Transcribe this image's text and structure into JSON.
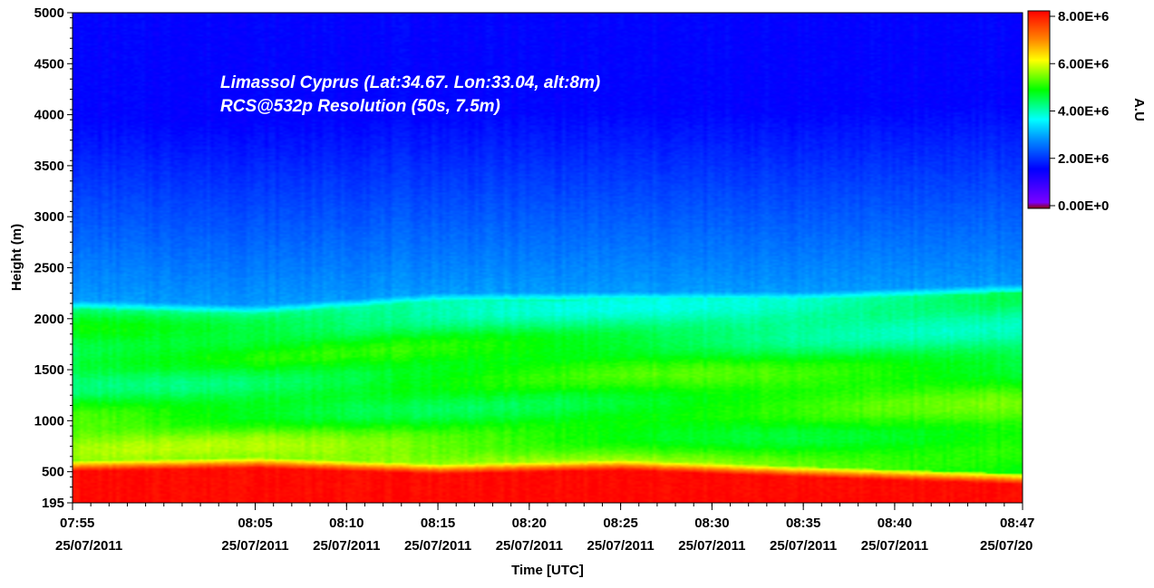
{
  "chart_data": {
    "type": "heatmap",
    "title": "",
    "annotations": [
      "Limassol Cyprus (Lat:34.67. Lon:33.04, alt:8m)",
      "RCS@532p Resolution (50s, 7.5m)"
    ],
    "xlabel": "Time [UTC]",
    "ylabel": "Height (m)",
    "x_range": [
      "07:55",
      "08:47"
    ],
    "x_ticks": [
      {
        "time": "07:55",
        "date": "25/07/2011",
        "minutes": 0
      },
      {
        "time": "08:05",
        "date": "25/07/2011",
        "minutes": 10
      },
      {
        "time": "08:10",
        "date": "25/07/2011",
        "minutes": 15
      },
      {
        "time": "08:15",
        "date": "25/07/2011",
        "minutes": 20
      },
      {
        "time": "08:20",
        "date": "25/07/2011",
        "minutes": 25
      },
      {
        "time": "08:25",
        "date": "25/07/2011",
        "minutes": 30
      },
      {
        "time": "08:30",
        "date": "25/07/2011",
        "minutes": 35
      },
      {
        "time": "08:35",
        "date": "25/07/2011",
        "minutes": 40
      },
      {
        "time": "08:40",
        "date": "25/07/2011",
        "minutes": 45
      },
      {
        "time": "08:47",
        "date": "25/07/20",
        "minutes": 52
      }
    ],
    "ylim": [
      195,
      5000
    ],
    "y_ticks": [
      195,
      500,
      1000,
      1500,
      2000,
      2500,
      3000,
      3500,
      4000,
      4500,
      5000
    ],
    "colorbar": {
      "label": "A.U",
      "range": [
        0,
        8000000
      ],
      "ticks": [
        "0.00E+0",
        "2.00E+6",
        "4.00E+6",
        "6.00E+6",
        "8.00E+6"
      ],
      "colormap": [
        "#8b0000",
        "#7a00ff",
        "#0000ff",
        "#0090ff",
        "#00ffff",
        "#00ff00",
        "#ffff00",
        "#ff8000",
        "#ff0000"
      ]
    },
    "layer_profiles": {
      "note_times_minutes": [
        0,
        10,
        20,
        30,
        40,
        52
      ],
      "ground_layer_top_m": [
        560,
        590,
        530,
        570,
        500,
        430
      ],
      "boundary_layer_top_m": [
        2100,
        2050,
        2170,
        2180,
        2180,
        2260
      ]
    }
  }
}
